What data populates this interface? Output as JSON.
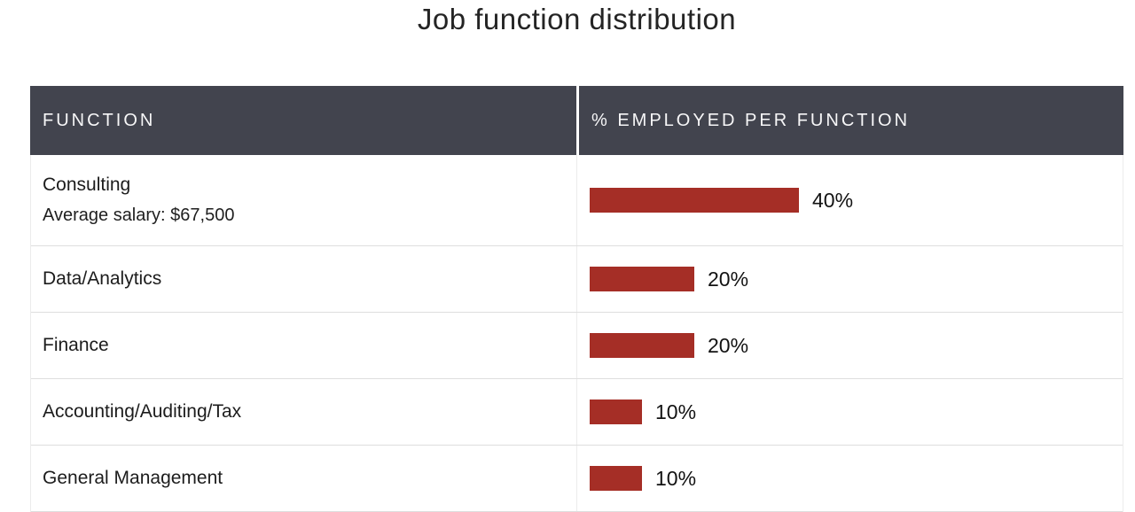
{
  "title": "Job function distribution",
  "table": {
    "headers": [
      "Function",
      "% Employed per function"
    ],
    "rows": [
      {
        "function": "Consulting",
        "subtext": "Average salary: $67,500",
        "percent": 40,
        "percent_label": "40%"
      },
      {
        "function": "Data/Analytics",
        "subtext": null,
        "percent": 20,
        "percent_label": "20%"
      },
      {
        "function": "Finance",
        "subtext": null,
        "percent": 20,
        "percent_label": "20%"
      },
      {
        "function": "Accounting/Auditing/Tax",
        "subtext": null,
        "percent": 10,
        "percent_label": "10%"
      },
      {
        "function": "General Management",
        "subtext": null,
        "percent": 10,
        "percent_label": "10%"
      }
    ]
  },
  "colors": {
    "bar": "#a52e26",
    "header_bg": "#42444e",
    "header_text": "#f7f7f8",
    "body_text": "#1c1c1c",
    "row_divider": "#dedede"
  },
  "chart_data": {
    "type": "bar",
    "orientation": "horizontal",
    "title": "Job function distribution",
    "categories": [
      "Consulting",
      "Data/Analytics",
      "Finance",
      "Accounting/Auditing/Tax",
      "General Management"
    ],
    "values": [
      40,
      20,
      20,
      10,
      10
    ],
    "value_labels": [
      "40%",
      "20%",
      "20%",
      "10%",
      "10%"
    ],
    "xlabel": "% Employed per function",
    "ylabel": "Function",
    "xlim": [
      0,
      100
    ],
    "grid": false,
    "legend": null,
    "annotations": [
      "Consulting — Average salary: $67,500"
    ]
  }
}
